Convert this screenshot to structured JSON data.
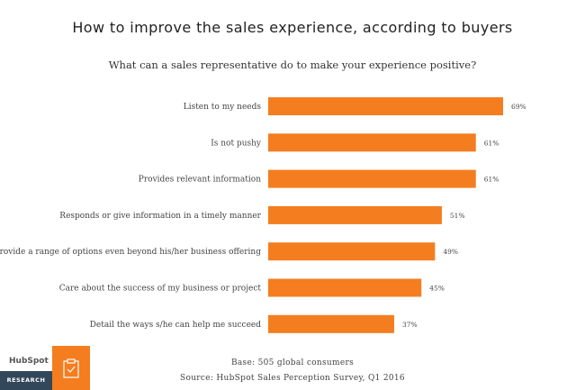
{
  "header": {
    "title": "How to improve the sales experience, according to buyers",
    "subtitle": "What can a sales representative do to make your experience positive?"
  },
  "chart_data": {
    "type": "bar",
    "orientation": "horizontal",
    "categories": [
      "Listen to my needs",
      "Is not pushy",
      "Provides relevant information",
      "Responds or give information in a timely manner",
      "Provide a range of options even beyond his/her business offering",
      "Care about the success of my business or project",
      "Detail the ways s/he can help me succeed"
    ],
    "values": [
      69,
      61,
      61,
      51,
      49,
      45,
      37
    ],
    "value_labels": [
      "69%",
      "61%",
      "61%",
      "51%",
      "49%",
      "45%",
      "37%"
    ],
    "bar_color": "#f47d20",
    "grid": false
  },
  "footer": {
    "base": "Base: 505 global consumers",
    "source": "Source: HubSpot Sales Perception Survey, Q1 2016"
  },
  "branding": {
    "logo_text": "HubSpot",
    "research_label": "RESEARCH",
    "accent_color": "#f47d20",
    "dark_color": "#33475b"
  }
}
